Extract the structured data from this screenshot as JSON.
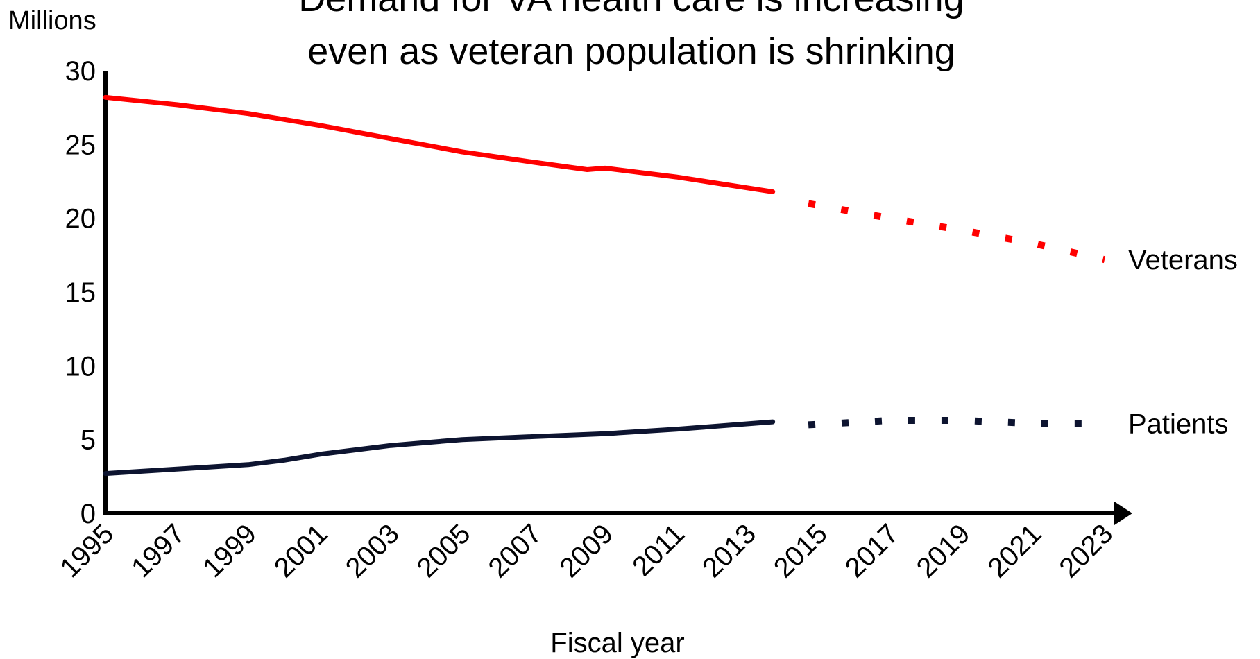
{
  "chart_data": {
    "type": "line",
    "title_lines": [
      "Demand for VA health care is increasing",
      "even as veteran population is shrinking"
    ],
    "ylabel": "Millions",
    "xlabel": "Fiscal year",
    "ylim": [
      0,
      30
    ],
    "xlim": [
      1995,
      2023
    ],
    "yticks": [
      0,
      5,
      10,
      15,
      20,
      25,
      30
    ],
    "xticks": [
      "1995",
      "1997",
      "1999",
      "2001",
      "2003",
      "2005",
      "2007",
      "2009",
      "2011",
      "2013",
      "2015",
      "2017",
      "2019",
      "2021",
      "2023"
    ],
    "grid": false,
    "series": [
      {
        "name": "Veterans",
        "color": "#ff0000",
        "actual": [
          [
            1995,
            28.2
          ],
          [
            1997,
            27.7
          ],
          [
            1999,
            27.1
          ],
          [
            2001,
            26.3
          ],
          [
            2003,
            25.4
          ],
          [
            2005,
            24.5
          ],
          [
            2007,
            23.8
          ],
          [
            2008.5,
            23.3
          ],
          [
            2009,
            23.4
          ],
          [
            2011,
            22.8
          ],
          [
            2013.7,
            21.8
          ]
        ],
        "projected": [
          [
            2014.7,
            21.0
          ],
          [
            2017,
            20.0
          ],
          [
            2019,
            19.2
          ],
          [
            2021,
            18.3
          ],
          [
            2023,
            17.2
          ]
        ]
      },
      {
        "name": "Patients",
        "color": "#0d1430",
        "actual": [
          [
            1995,
            2.7
          ],
          [
            1997,
            3.0
          ],
          [
            1999,
            3.3
          ],
          [
            2000,
            3.6
          ],
          [
            2001,
            4.0
          ],
          [
            2003,
            4.6
          ],
          [
            2005,
            5.0
          ],
          [
            2007,
            5.2
          ],
          [
            2009,
            5.4
          ],
          [
            2011,
            5.7
          ],
          [
            2013.7,
            6.2
          ]
        ],
        "projected": [
          [
            2014.7,
            6.0
          ],
          [
            2017,
            6.3
          ],
          [
            2019,
            6.3
          ],
          [
            2021,
            6.1
          ],
          [
            2023,
            6.1
          ]
        ]
      }
    ]
  }
}
